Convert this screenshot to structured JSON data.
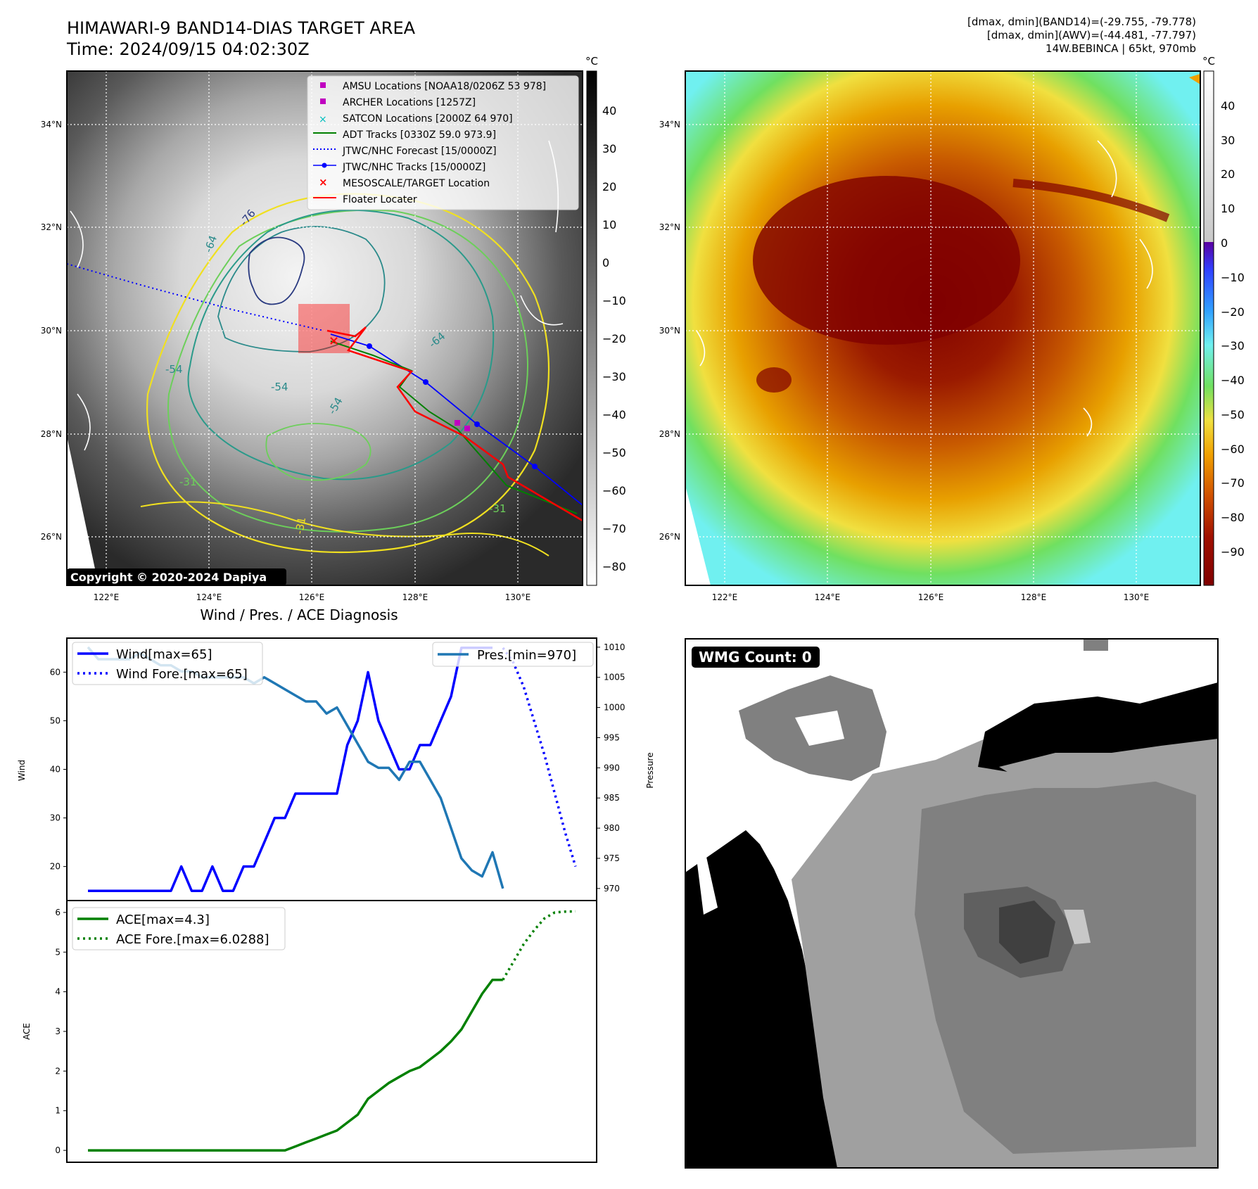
{
  "title": {
    "line1": "HIMAWARI-9 BAND14-DIAS TARGET AREA",
    "line2": "Time: 2024/09/15 04:02:30Z",
    "right1": "[dmax, dmin](BAND14)=(-29.755, -79.778)",
    "right2": "[dmax, dmin](AWV)=(-44.481, -77.797)",
    "right3": "14W.BEBINCA | 65kt, 970mb"
  },
  "map": {
    "lat_labels": [
      "34°N",
      "32°N",
      "30°N",
      "28°N",
      "26°N"
    ],
    "lon_labels": [
      "122°E",
      "124°E",
      "126°E",
      "128°E",
      "130°E"
    ],
    "unit": "°C",
    "copyright": "Copyright © 2020-2024 Dapiya",
    "contour_labels": [
      "-76",
      "-64",
      "-64",
      "-54",
      "-54",
      "-54",
      "-31",
      "-31",
      "-31"
    ],
    "ir_colorbar_ticks": [
      "40",
      "30",
      "20",
      "10",
      "0",
      "−10",
      "−20",
      "−30",
      "−40",
      "−50",
      "−60",
      "−70",
      "−80"
    ],
    "wv_colorbar_ticks": [
      "40",
      "30",
      "20",
      "10",
      "0",
      "−10",
      "−20",
      "−30",
      "−40",
      "−50",
      "−60",
      "−70",
      "−80",
      "−90"
    ],
    "legend": [
      {
        "label": "AMSU Locations [NOAA18/0206Z 53 978]",
        "color": "#c000c0"
      },
      {
        "label": "ARCHER Locations [1257Z]",
        "color": "#c000c0"
      },
      {
        "label": "SATCON Locations [2000Z 64 970]",
        "color": "#00bfbf"
      },
      {
        "label": "ADT Tracks [0330Z 59.0 973.9]",
        "color": "#008000"
      },
      {
        "label": "JTWC/NHC Forecast [15/0000Z]",
        "color": "#0000ff"
      },
      {
        "label": "JTWC/NHC Tracks [15/0000Z]",
        "color": "#0000ff"
      },
      {
        "label": "MESOSCALE/TARGET Location",
        "color": "#ff0000"
      },
      {
        "label": "Floater Locater",
        "color": "#ff0000"
      }
    ]
  },
  "diag": {
    "title": "Wind / Pres. / ACE Diagnosis",
    "wind_legend": "Wind[max=65]",
    "wind_fore_legend": "Wind Fore.[max=65]",
    "pres_legend": "Pres.[min=970]",
    "ace_legend": "ACE[max=4.3]",
    "ace_fore_legend": "ACE Fore.[max=6.0288]",
    "wmg": "WMG Count: 0"
  },
  "colors": {
    "wind": "#0000ff",
    "pressure": "#1f77b4",
    "ace": "#008000"
  },
  "chart_data": [
    {
      "type": "line",
      "title": "Wind / Pres. / ACE Diagnosis",
      "ylabel": "Wind",
      "ylim": [
        13,
        67
      ],
      "yticks": [
        20,
        30,
        40,
        50,
        60
      ],
      "series": [
        {
          "name": "Wind[max=65]",
          "x": [
            0,
            1,
            2,
            3,
            4,
            5,
            6,
            7,
            8,
            9,
            10,
            11,
            12,
            13,
            14,
            15,
            16,
            17,
            18,
            19,
            20,
            21,
            22,
            23,
            24,
            25,
            26,
            27,
            28,
            29,
            30,
            31,
            32,
            33,
            34,
            35,
            36,
            37,
            38,
            39
          ],
          "values": [
            15,
            15,
            15,
            15,
            15,
            15,
            15,
            15,
            15,
            20,
            15,
            15,
            20,
            15,
            15,
            20,
            20,
            25,
            30,
            30,
            35,
            35,
            35,
            35,
            35,
            45,
            50,
            60,
            50,
            45,
            40,
            40,
            45,
            45,
            50,
            55,
            65,
            65,
            65,
            65
          ]
        },
        {
          "name": "Wind Fore.[max=65]",
          "x": [
            40,
            41,
            42,
            43,
            44,
            45,
            46,
            47
          ],
          "values": [
            65,
            62,
            57,
            50,
            43,
            35,
            27,
            20
          ]
        }
      ]
    },
    {
      "type": "line",
      "ylabel": "Pressure",
      "ylim": [
        968,
        1011.5
      ],
      "yticks": [
        970,
        975,
        980,
        985,
        990,
        995,
        1000,
        1005,
        1010
      ],
      "series": [
        {
          "name": "Pres.[min=970]",
          "x": [
            0,
            1,
            2,
            3,
            4,
            5,
            6,
            7,
            8,
            9,
            10,
            11,
            12,
            13,
            14,
            15,
            16,
            17,
            18,
            19,
            20,
            21,
            22,
            23,
            24,
            25,
            26,
            27,
            28,
            29,
            30,
            31,
            32,
            33,
            34,
            35,
            36,
            37,
            38,
            39,
            40
          ],
          "values": [
            1010,
            1008,
            1008,
            1008,
            1008,
            1009,
            1008,
            1007,
            1007,
            1006,
            1006,
            1005,
            1005,
            1005,
            1005,
            1005,
            1004,
            1005,
            1004,
            1003,
            1002,
            1001,
            1001,
            999,
            1000,
            997,
            994,
            991,
            990,
            990,
            988,
            991,
            991,
            988,
            985,
            980,
            975,
            973,
            972,
            976,
            970
          ]
        }
      ]
    },
    {
      "type": "line",
      "ylabel": "ACE",
      "ylim": [
        -0.3,
        6.3
      ],
      "yticks": [
        0,
        1,
        2,
        3,
        4,
        5,
        6
      ],
      "series": [
        {
          "name": "ACE[max=4.3]",
          "x": [
            0,
            1,
            2,
            3,
            4,
            5,
            6,
            7,
            8,
            9,
            10,
            11,
            12,
            13,
            14,
            15,
            16,
            17,
            18,
            19,
            20,
            21,
            22,
            23,
            24,
            25,
            26,
            27,
            28,
            29,
            30,
            31,
            32,
            33,
            34,
            35,
            36,
            37,
            38,
            39,
            40
          ],
          "values": [
            0,
            0,
            0,
            0,
            0,
            0,
            0,
            0,
            0,
            0,
            0,
            0,
            0,
            0,
            0,
            0,
            0,
            0,
            0,
            0,
            0.1,
            0.2,
            0.3,
            0.4,
            0.5,
            0.7,
            0.9,
            1.3,
            1.5,
            1.7,
            1.85,
            2.0,
            2.1,
            2.3,
            2.5,
            2.75,
            3.05,
            3.5,
            3.95,
            4.3,
            4.3
          ]
        },
        {
          "name": "ACE Fore.[max=6.0288]",
          "x": [
            40,
            41,
            42,
            43,
            44,
            45,
            46,
            47
          ],
          "values": [
            4.3,
            4.75,
            5.2,
            5.55,
            5.85,
            6.0,
            6.02,
            6.0288
          ]
        }
      ]
    }
  ]
}
